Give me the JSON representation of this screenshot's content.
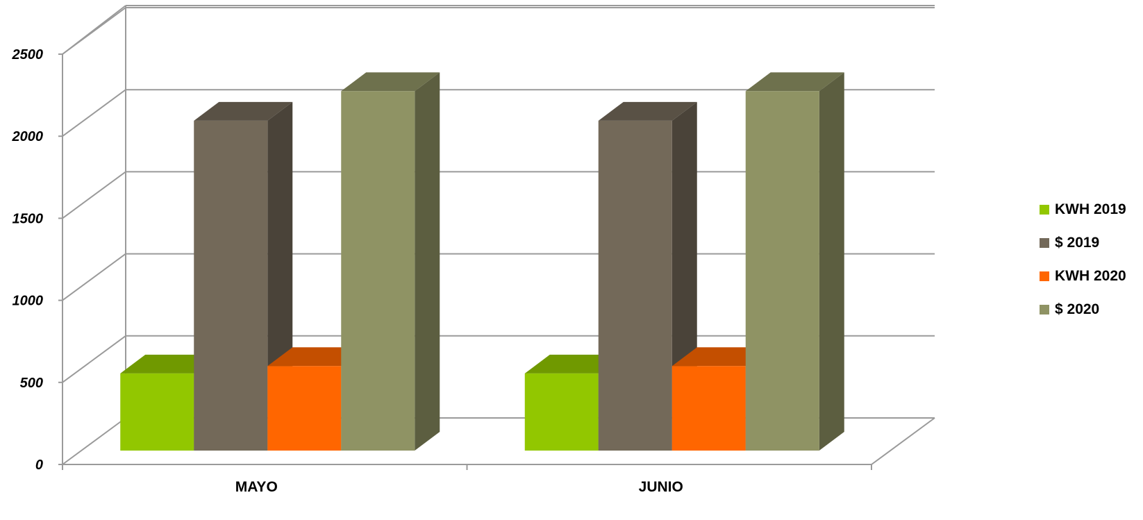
{
  "chart_data": {
    "type": "bar",
    "categories": [
      "MAYO",
      "JUNIO"
    ],
    "series": [
      {
        "name": "KWH 2019",
        "values": [
          470,
          470
        ],
        "color": "#92c700"
      },
      {
        "name": "$ 2019",
        "values": [
          2010,
          2010
        ],
        "color": "#736959"
      },
      {
        "name": "KWH 2020",
        "values": [
          515,
          515
        ],
        "color": "#ff6600"
      },
      {
        "name": "$ 2020",
        "values": [
          2190,
          2190
        ],
        "color": "#8f9364"
      }
    ],
    "yticks": [
      0,
      500,
      1000,
      1500,
      2000,
      2500
    ],
    "ylim": [
      0,
      2500
    ],
    "grid": true,
    "legend_position": "right"
  }
}
